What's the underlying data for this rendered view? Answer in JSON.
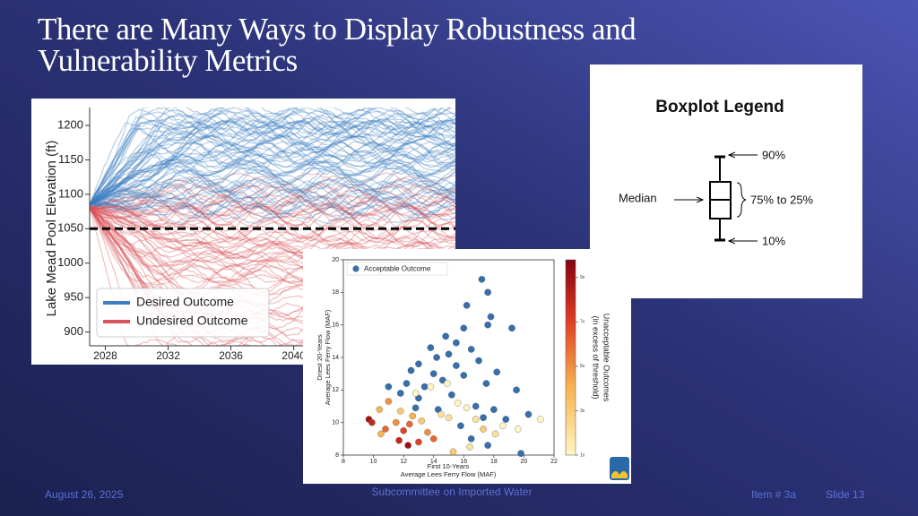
{
  "slide": {
    "title_lines": [
      "There are Many Ways to Display Robustness and",
      "Vulnerability Metrics"
    ],
    "footer": {
      "date": "August 26, 2025",
      "center": "Subcommittee on Imported Water",
      "item": "Item # 3a",
      "slide": "Slide 13"
    }
  },
  "line_chart": {
    "type": "line",
    "y_label": "Lake Mead Pool Elevation (ft)",
    "ylim": [
      880,
      1226
    ],
    "yticks": [
      900,
      950,
      1000,
      1050,
      1100,
      1150,
      1200
    ],
    "xlim": [
      2027,
      2050.3
    ],
    "xticks": [
      2028,
      2032,
      2036,
      2040
    ],
    "threshold": 1050,
    "legend": [
      {
        "name": "Desired Outcome",
        "color": "#3d7fc1"
      },
      {
        "name": "Undesired Outcome",
        "color": "#d9545a"
      }
    ]
  },
  "scatter_chart": {
    "type": "scatter",
    "x_label_lines": [
      "First 10-Years",
      "Average Lees Ferry Flow (MAF)"
    ],
    "y_label_lines": [
      "Driest 20-Years",
      "Average Lees Ferry Flow (MAF)"
    ],
    "xlim": [
      8,
      22
    ],
    "xticks": [
      8,
      10,
      12,
      14,
      16,
      18,
      20,
      22
    ],
    "ylim": [
      8,
      20
    ],
    "yticks": [
      8,
      10,
      12,
      14,
      16,
      18,
      20
    ],
    "acceptable": {
      "name": "Acceptable Outcome",
      "color": "#3a6ea8",
      "x": [
        17.2,
        17.6,
        16.2,
        17.8,
        17.6,
        19.2,
        16.0,
        14.8,
        15.5,
        13.8,
        14.2,
        15.0,
        16.5,
        13.0,
        12.5,
        14.0,
        15.5,
        17.0,
        18.2,
        12.2,
        13.4,
        14.6,
        16.0,
        11.8,
        13.0,
        15.2,
        17.5,
        19.5,
        16.8,
        18.0,
        17.3,
        18.8,
        20.3,
        15.8,
        16.5,
        17.6,
        19.8,
        14.3,
        12.8,
        11.0
      ],
      "y": [
        18.8,
        18.0,
        17.2,
        16.5,
        16.0,
        15.8,
        15.8,
        15.3,
        14.9,
        14.6,
        14.0,
        14.2,
        14.5,
        13.6,
        13.2,
        13.0,
        13.5,
        13.8,
        13.1,
        12.4,
        12.2,
        12.6,
        12.9,
        11.8,
        11.5,
        11.7,
        12.4,
        12.0,
        11.0,
        10.8,
        10.3,
        10.2,
        10.5,
        9.8,
        9.0,
        8.6,
        8.1,
        10.8,
        10.9,
        12.2
      ]
    },
    "unacceptable": {
      "x": [
        9.7,
        9.9,
        10.4,
        11.0,
        10.8,
        11.5,
        11.7,
        12.3,
        12.0,
        12.6,
        13.2,
        13.6,
        14.0,
        14.5,
        15.0,
        15.6,
        16.2,
        16.8,
        17.3,
        18.1,
        18.6,
        19.6,
        21.1,
        12.8,
        13.8,
        14.9,
        11.8,
        10.5,
        13.0,
        15.3,
        16.4,
        12.4
      ],
      "y": [
        10.2,
        10.0,
        10.8,
        11.3,
        9.6,
        10.0,
        8.9,
        8.6,
        9.5,
        10.4,
        10.1,
        9.4,
        9.0,
        10.5,
        10.3,
        11.2,
        10.9,
        10.2,
        9.6,
        9.3,
        9.8,
        9.6,
        10.2,
        11.8,
        12.2,
        12.4,
        10.7,
        9.3,
        8.8,
        8.2,
        8.5,
        9.9
      ],
      "c": [
        9,
        8,
        4,
        5,
        6,
        5,
        8,
        9,
        7,
        4,
        3,
        5,
        6,
        2,
        2,
        1,
        1,
        2,
        3,
        2,
        1,
        1,
        1,
        1,
        1,
        1,
        3,
        4,
        7,
        3,
        2,
        6
      ]
    },
    "colorbar": {
      "label_lines": [
        "Unacceptable Outcomes",
        "(in excess of threshold)"
      ],
      "lim": [
        1,
        9.8
      ],
      "ticks": [
        {
          "value": 1,
          "label": "1x"
        },
        {
          "value": 3,
          "label": "3x"
        },
        {
          "value": 5,
          "label": "5x"
        },
        {
          "value": 7,
          "label": "7x"
        },
        {
          "value": 9,
          "label": "9x"
        }
      ]
    }
  },
  "boxplot_legend": {
    "title": "Boxplot Legend",
    "labels": {
      "p90": "90%",
      "median": "Median",
      "iqr": "75% to 25%",
      "p10": "10%"
    }
  }
}
